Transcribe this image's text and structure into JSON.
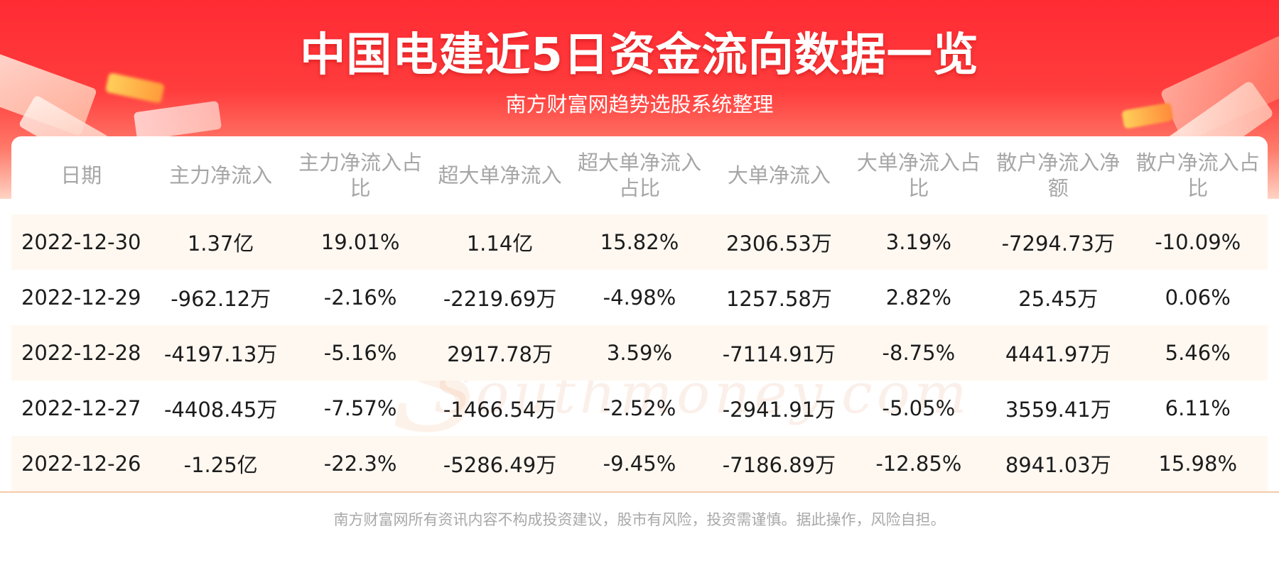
{
  "header": {
    "title": "中国电建近5日资金流向数据一览",
    "subtitle": "南方财富网趋势选股系统整理"
  },
  "watermark": {
    "cn": "南方财富网",
    "en": "Southmoney.com"
  },
  "chart_data": {
    "type": "table",
    "columns": [
      "日期",
      "主力净流入",
      "主力净流入占比",
      "超大单净流入",
      "超大单净流入占比",
      "大单净流入",
      "大单净流入占比",
      "散户净流入净额",
      "散户净流入占比"
    ],
    "rows": [
      [
        "2022-12-30",
        "1.37亿",
        "19.01%",
        "1.14亿",
        "15.82%",
        "2306.53万",
        "3.19%",
        "-7294.73万",
        "-10.09%"
      ],
      [
        "2022-12-29",
        "-962.12万",
        "-2.16%",
        "-2219.69万",
        "-4.98%",
        "1257.58万",
        "2.82%",
        "25.45万",
        "0.06%"
      ],
      [
        "2022-12-28",
        "-4197.13万",
        "-5.16%",
        "2917.78万",
        "3.59%",
        "-7114.91万",
        "-8.75%",
        "4441.97万",
        "5.46%"
      ],
      [
        "2022-12-27",
        "-4408.45万",
        "-7.57%",
        "-1466.54万",
        "-2.52%",
        "-2941.91万",
        "-5.05%",
        "3559.41万",
        "6.11%"
      ],
      [
        "2022-12-26",
        "-1.25亿",
        "-22.3%",
        "-5286.49万",
        "-9.45%",
        "-7186.89万",
        "-12.85%",
        "8941.03万",
        "15.98%"
      ]
    ]
  },
  "footer": {
    "disclaimer": "南方财富网所有资讯内容不构成投资建议，股市有风险，投资需谨慎。据此操作，风险自担。"
  },
  "colors": {
    "banner_red": "#ff2b34",
    "row_alt": "#fff8f1",
    "header_text": "#a6a6a6"
  }
}
